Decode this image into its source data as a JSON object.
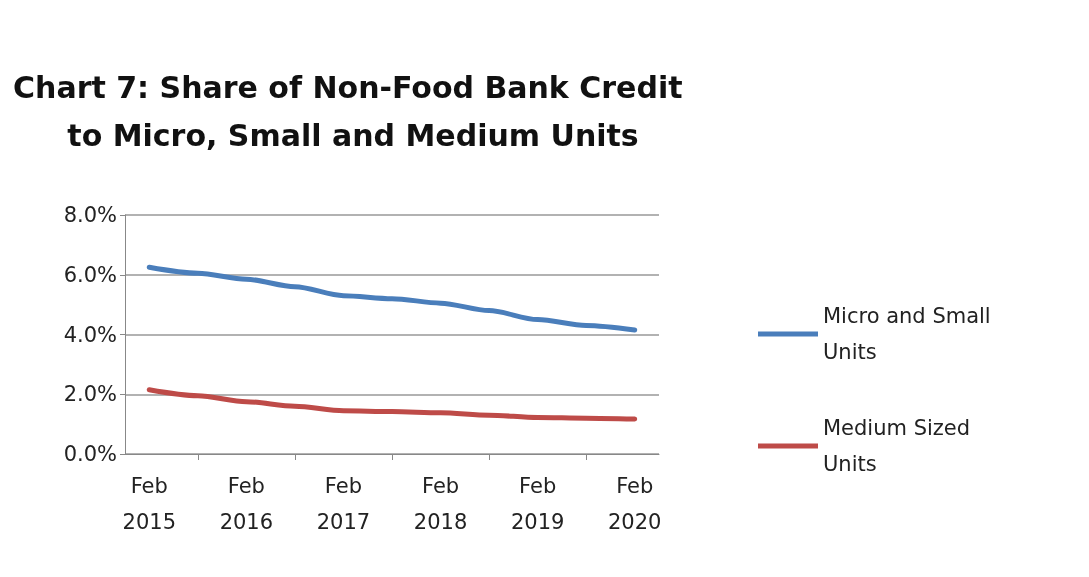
{
  "chart_data": {
    "type": "line",
    "title": "Chart 7: Share of Non-Food Bank Credit to Micro, Small and Medium Units",
    "categories": [
      "Feb 2015",
      null,
      "Feb 2016",
      null,
      "Feb 2017",
      null,
      "Feb 2018",
      null,
      "Feb 2019",
      null,
      "Feb 2020"
    ],
    "series": [
      {
        "name": "Micro and Small Units",
        "color": "#4a7ebb",
        "values": [
          6.25,
          6.05,
          5.85,
          5.6,
          5.3,
          5.2,
          5.05,
          4.8,
          4.5,
          4.3,
          4.15
        ]
      },
      {
        "name": "Medium Sized Units",
        "color": "#be4b48",
        "values": [
          2.15,
          1.95,
          1.75,
          1.6,
          1.45,
          1.42,
          1.38,
          1.3,
          1.22,
          1.2,
          1.17
        ]
      }
    ],
    "ylim": [
      0,
      8
    ],
    "yticks": [
      {
        "value": 0,
        "label": "0.0%"
      },
      {
        "value": 2,
        "label": "2.0%"
      },
      {
        "value": 4,
        "label": "4.0%"
      },
      {
        "value": 6,
        "label": "6.0%"
      },
      {
        "value": 8,
        "label": "8.0%"
      }
    ],
    "grid": "y",
    "legend": "right",
    "marker": "none",
    "line_style": "solid"
  }
}
